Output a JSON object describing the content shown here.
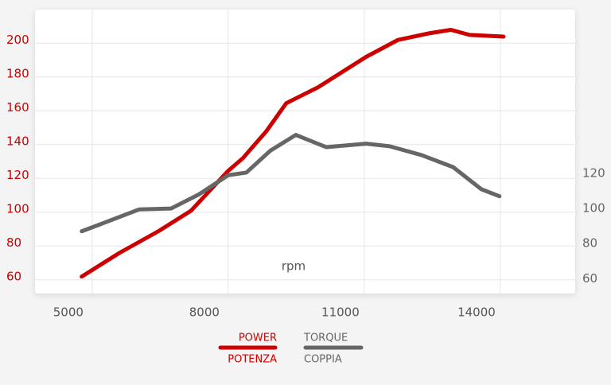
{
  "chart_data": {
    "type": "line",
    "x_label": "rpm",
    "xlim": [
      3740,
      15650
    ],
    "xticks": [
      5000,
      8000,
      11000,
      14000
    ],
    "ylim": [
      50,
      218
    ],
    "yticks": [
      60,
      80,
      100,
      120,
      140,
      160,
      180,
      200
    ],
    "y2lim": [
      51.5,
      213.5
    ],
    "y2ticks": [
      60,
      80,
      100,
      120
    ],
    "grid": true,
    "series": [
      {
        "name": "POWER",
        "name_2": "POTENZA",
        "color": "#cc0000",
        "axis": "y",
        "x": [
          4770,
          5600,
          6470,
          7180,
          8000,
          8320,
          8840,
          9280,
          9980,
          10510,
          11040,
          11740,
          12440,
          12910,
          13320,
          14070
        ],
        "values": [
          60,
          74,
          87,
          99,
          122.6,
          130,
          146,
          162.6,
          172,
          181,
          190,
          200,
          204,
          206,
          203,
          202
        ]
      },
      {
        "name": "TORQUE",
        "name_2": "COPPIA",
        "color": "#666666",
        "axis": "y2",
        "x": [
          4770,
          6040,
          6740,
          7350,
          8000,
          8400,
          8930,
          9490,
          10160,
          11040,
          11560,
          12260,
          12960,
          13580,
          13980
        ],
        "values": [
          87,
          99.5,
          100,
          108,
          119,
          120.5,
          133,
          142,
          135,
          137,
          135.5,
          130.5,
          123.6,
          111,
          107
        ]
      }
    ]
  }
}
